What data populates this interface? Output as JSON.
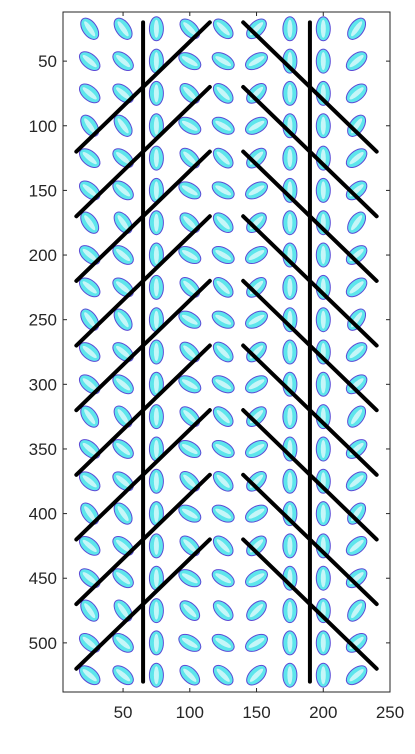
{
  "chart_data": {
    "type": "scatter",
    "xlim": [
      5,
      250
    ],
    "ylim": [
      12,
      538
    ],
    "y_reversed": true,
    "x_ticks": [
      50,
      100,
      150,
      200,
      250
    ],
    "y_ticks": [
      50,
      100,
      150,
      200,
      250,
      300,
      350,
      400,
      450,
      500
    ],
    "x_tick_labels": [
      "50",
      "100",
      "150",
      "200",
      "250"
    ],
    "y_tick_labels": [
      "50",
      "100",
      "150",
      "200",
      "250",
      "300",
      "350",
      "400",
      "450",
      "500"
    ],
    "grid": false,
    "ellipse_grid": {
      "columns_x": [
        25,
        50,
        75,
        100,
        125,
        150,
        175,
        200,
        225
      ],
      "rows_y": [
        25,
        50,
        75,
        100,
        125,
        150,
        175,
        200,
        225,
        250,
        275,
        300,
        325,
        350,
        375,
        400,
        425,
        450,
        475,
        500,
        525
      ],
      "outline_color": "#5b4bd6",
      "fill_color": "#5ee6ec"
    },
    "lines": {
      "color": "#000000",
      "vertical": [
        {
          "x": 65,
          "y": [
            20,
            530
          ]
        },
        {
          "x": 190,
          "y": [
            20,
            530
          ]
        }
      ],
      "left_diagonals": [
        {
          "x": [
            15,
            115
          ],
          "y": [
            120,
            20
          ]
        },
        {
          "x": [
            15,
            115
          ],
          "y": [
            170,
            70
          ]
        },
        {
          "x": [
            15,
            115
          ],
          "y": [
            220,
            120
          ]
        },
        {
          "x": [
            15,
            115
          ],
          "y": [
            270,
            170
          ]
        },
        {
          "x": [
            15,
            115
          ],
          "y": [
            320,
            220
          ]
        },
        {
          "x": [
            15,
            115
          ],
          "y": [
            370,
            270
          ]
        },
        {
          "x": [
            15,
            115
          ],
          "y": [
            420,
            320
          ]
        },
        {
          "x": [
            15,
            115
          ],
          "y": [
            470,
            370
          ]
        },
        {
          "x": [
            15,
            115
          ],
          "y": [
            520,
            420
          ]
        }
      ],
      "right_diagonals": [
        {
          "x": [
            140,
            240
          ],
          "y": [
            20,
            120
          ]
        },
        {
          "x": [
            140,
            240
          ],
          "y": [
            70,
            170
          ]
        },
        {
          "x": [
            140,
            240
          ],
          "y": [
            120,
            220
          ]
        },
        {
          "x": [
            140,
            240
          ],
          "y": [
            170,
            270
          ]
        },
        {
          "x": [
            140,
            240
          ],
          "y": [
            220,
            320
          ]
        },
        {
          "x": [
            140,
            240
          ],
          "y": [
            270,
            370
          ]
        },
        {
          "x": [
            140,
            240
          ],
          "y": [
            320,
            420
          ]
        },
        {
          "x": [
            140,
            240
          ],
          "y": [
            370,
            470
          ]
        },
        {
          "x": [
            140,
            240
          ],
          "y": [
            420,
            520
          ]
        }
      ]
    }
  }
}
